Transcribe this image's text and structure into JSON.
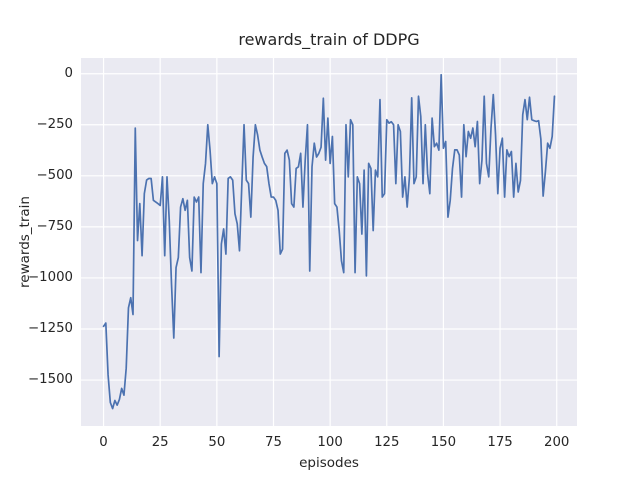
{
  "figure": {
    "background": "#ffffff",
    "text_color": "#262626"
  },
  "chart_data": {
    "type": "line",
    "title": "rewards_train of DDPG",
    "xlabel": "episodes",
    "ylabel": "rewards_train",
    "grid": true,
    "legend": false,
    "plot_background": "#eaeaf2",
    "grid_color": "#ffffff",
    "line_color": "#4c72b0",
    "line_width": 1.7,
    "xlim": [
      -9.95,
      208.95
    ],
    "ylim": [
      -1725,
      77
    ],
    "xticks": [
      {
        "value": 0,
        "label": "0"
      },
      {
        "value": 25,
        "label": "25"
      },
      {
        "value": 50,
        "label": "50"
      },
      {
        "value": 75,
        "label": "75"
      },
      {
        "value": 100,
        "label": "100"
      },
      {
        "value": 125,
        "label": "125"
      },
      {
        "value": 150,
        "label": "150"
      },
      {
        "value": 175,
        "label": "175"
      },
      {
        "value": 200,
        "label": "200"
      }
    ],
    "yticks": [
      {
        "value": 0,
        "label": "0"
      },
      {
        "value": -250,
        "label": "−250"
      },
      {
        "value": -500,
        "label": "−500"
      },
      {
        "value": -750,
        "label": "−750"
      },
      {
        "value": -1000,
        "label": "−1000"
      },
      {
        "value": -1250,
        "label": "−1250"
      },
      {
        "value": -1500,
        "label": "−1500"
      }
    ],
    "x_start": 0,
    "x_step": 1,
    "series": [
      {
        "name": "rewards_train",
        "color": "#4c72b0",
        "values": [
          -1237,
          -1221,
          -1475,
          -1610,
          -1640,
          -1600,
          -1623,
          -1595,
          -1541,
          -1574,
          -1442,
          -1146,
          -1097,
          -1179,
          -266,
          -817,
          -636,
          -891,
          -587,
          -521,
          -513,
          -513,
          -620,
          -628,
          -636,
          -645,
          -505,
          -891,
          -505,
          -719,
          -1031,
          -1294,
          -949,
          -900,
          -653,
          -612,
          -669,
          -620,
          -900,
          -966,
          -604,
          -628,
          -604,
          -974,
          -538,
          -440,
          -250,
          -374,
          -538,
          -505,
          -538,
          -1385,
          -834,
          -760,
          -883,
          -513,
          -505,
          -521,
          -686,
          -735,
          -867,
          -554,
          -250,
          -521,
          -538,
          -702,
          -408,
          -250,
          -300,
          -374,
          -408,
          -439,
          -455,
          -538,
          -604,
          -604,
          -620,
          -669,
          -883,
          -859,
          -390,
          -374,
          -423,
          -636,
          -653,
          -464,
          -456,
          -390,
          -653,
          -423,
          -250,
          -966,
          -456,
          -340,
          -408,
          -390,
          -360,
          -120,
          -423,
          -217,
          -439,
          -307,
          -636,
          -653,
          -768,
          -916,
          -974,
          -250,
          -505,
          -225,
          -250,
          -974,
          -505,
          -538,
          -785,
          -472,
          -990,
          -439,
          -464,
          -768,
          -472,
          -505,
          -127,
          -604,
          -587,
          -225,
          -242,
          -235,
          -250,
          -538,
          -250,
          -283,
          -604,
          -505,
          -653,
          -505,
          -118,
          -538,
          -505,
          -110,
          -209,
          -538,
          -250,
          -489,
          -587,
          -217,
          -357,
          -340,
          -374,
          -5,
          -365,
          -332,
          -702,
          -620,
          -464,
          -373,
          -373,
          -398,
          -604,
          -250,
          -406,
          -283,
          -316,
          -266,
          -357,
          -234,
          -538,
          -423,
          -110,
          -439,
          -505,
          -266,
          -102,
          -299,
          -587,
          -365,
          -316,
          -604,
          -373,
          -406,
          -381,
          -604,
          -439,
          -579,
          -523,
          -201,
          -127,
          -225,
          -115,
          -225,
          -230,
          -234,
          -230,
          -320,
          -599,
          -480,
          -340,
          -365,
          -307,
          -110
        ]
      }
    ]
  }
}
